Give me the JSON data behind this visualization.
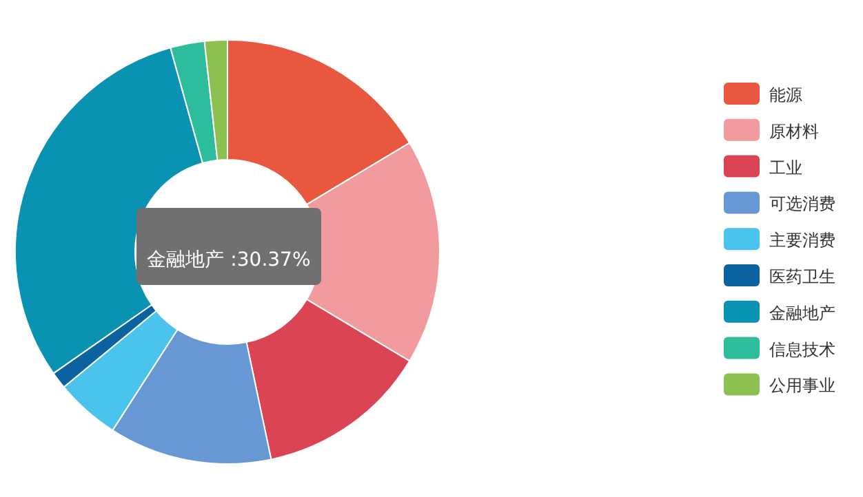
{
  "chart_data": {
    "type": "donut",
    "categories": [
      "能源",
      "原材料",
      "工业",
      "可选消费",
      "主要消费",
      "医药卫生",
      "金融地产",
      "信息技术",
      "公用事业"
    ],
    "values": [
      16.4,
      17.2,
      13.1,
      12.4,
      4.9,
      1.3,
      30.37,
      2.6,
      1.73
    ],
    "colors": [
      "#e9573f",
      "#f29b9f",
      "#db4453",
      "#6898d4",
      "#4ac4ec",
      "#0a62a0",
      "#0a92b3",
      "#2dbd9c",
      "#8cc152"
    ],
    "legend": "right",
    "annotations": [
      "金融地产 :30.37%"
    ]
  }
}
